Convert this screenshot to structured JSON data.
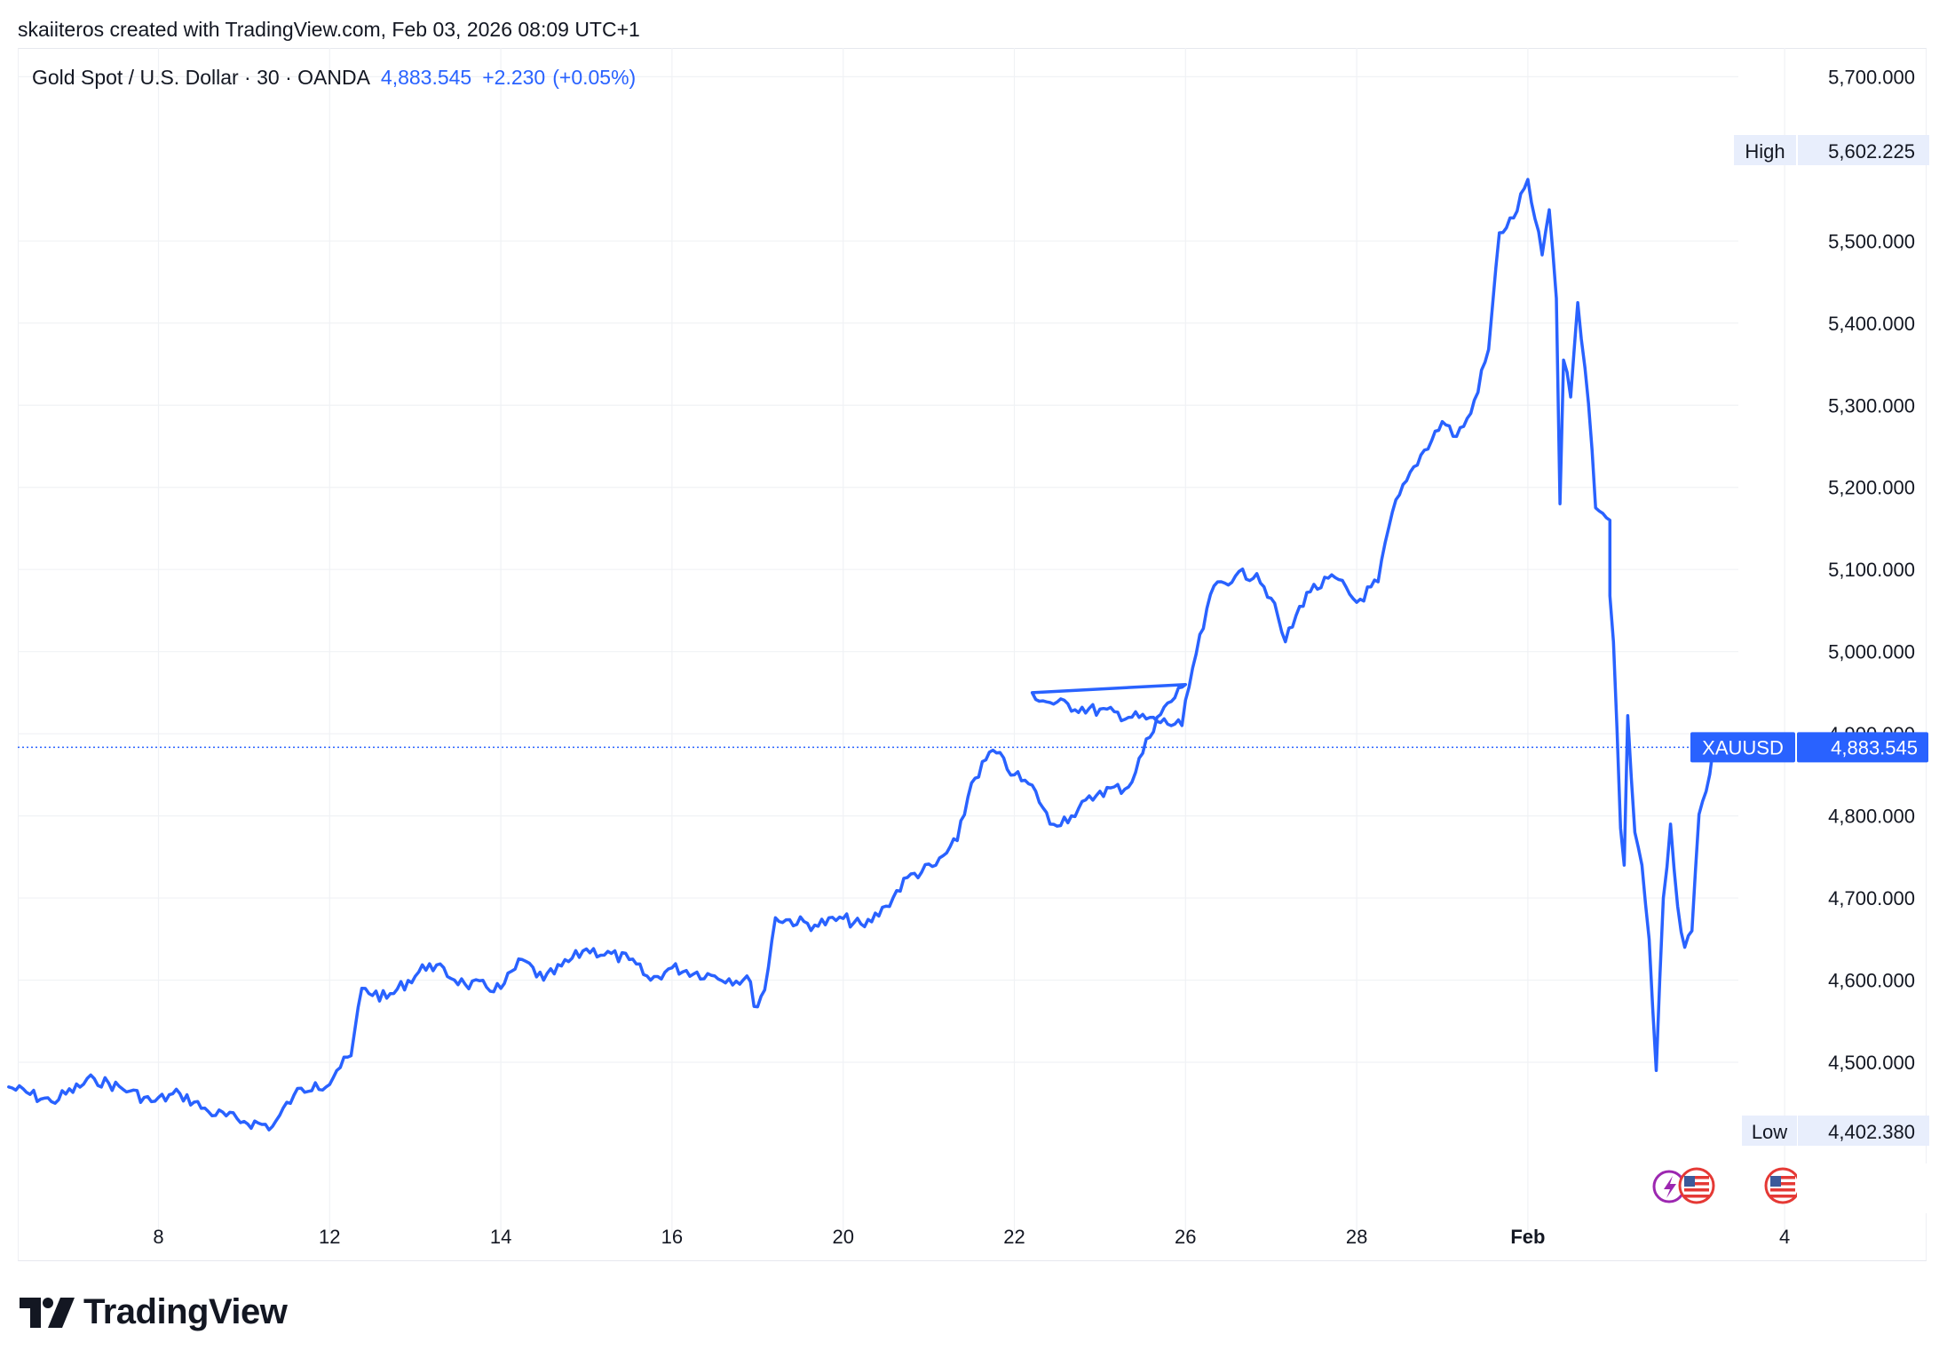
{
  "caption": "skaiiteros created with TradingView.com, Feb 03, 2026 08:09 UTC+1",
  "legend": {
    "symbol_text": "Gold Spot / U.S. Dollar · 30 · OANDA",
    "price": "4,883.545",
    "change": "+2.230",
    "change_pct": "(+0.05%)"
  },
  "brand": {
    "wordmark": "TradingView"
  },
  "colors": {
    "line": "#2962ff",
    "grid": "#f0f2f5",
    "text": "#131722",
    "tag_bg": "#e8eefc",
    "label_bg": "#2962ff"
  },
  "markers": [
    {
      "name": "lightning-event-icon",
      "color": "#9c27b0"
    },
    {
      "name": "us-flag-event-icon",
      "color": "#e53935"
    },
    {
      "name": "us-flag-event-icon",
      "color": "#e53935"
    }
  ],
  "chart_data": {
    "type": "line",
    "title": "Gold Spot / U.S. Dollar · 30 · OANDA",
    "xlabel": "",
    "ylabel": "",
    "ylim": [
      4327,
      5735
    ],
    "y_ticks": [
      4500,
      4600,
      4700,
      4800,
      4900,
      5000,
      5100,
      5200,
      5300,
      5400,
      5500,
      5700
    ],
    "y_tick_labels": [
      "4,500.000",
      "4,600.000",
      "4,700.000",
      "4,800.000",
      "4,900.000",
      "5,000.000",
      "5,100.000",
      "5,200.000",
      "5,300.000",
      "5,400.000",
      "5,500.000",
      "5,700.000"
    ],
    "x_ticks": [
      {
        "x": "2026-01-08",
        "label": "8",
        "bold": false
      },
      {
        "x": "2026-01-12",
        "label": "12",
        "bold": false
      },
      {
        "x": "2026-01-14",
        "label": "14",
        "bold": false
      },
      {
        "x": "2026-01-16",
        "label": "16",
        "bold": false
      },
      {
        "x": "2026-01-20",
        "label": "20",
        "bold": false
      },
      {
        "x": "2026-01-22",
        "label": "22",
        "bold": false
      },
      {
        "x": "2026-01-26",
        "label": "26",
        "bold": false
      },
      {
        "x": "2026-01-28",
        "label": "28",
        "bold": false
      },
      {
        "x": "2026-02-01",
        "label": "Feb",
        "bold": true
      },
      {
        "x": "2026-02-04",
        "label": "4",
        "bold": false
      }
    ],
    "high": {
      "tag": "High",
      "value": "5,602.225"
    },
    "low": {
      "tag": "Low",
      "value": "4,402.380"
    },
    "last": {
      "tag": "XAUUSD",
      "value": "4,883.545",
      "y": 4883.545
    },
    "series": [
      {
        "points": [
          [
            "2026-01-06 06:00",
            4470
          ],
          [
            "2026-01-06 18:00",
            4452
          ],
          [
            "2026-01-07 06:00",
            4480
          ],
          [
            "2026-01-07 16:00",
            4465
          ],
          [
            "2026-01-07 22:00",
            4452
          ],
          [
            "2026-01-08 06:00",
            4462
          ],
          [
            "2026-01-08 14:00",
            4440
          ],
          [
            "2026-01-09 00:00",
            4428
          ],
          [
            "2026-01-09 08:00",
            4422
          ],
          [
            "2026-01-09 14:00",
            4460
          ],
          [
            "2026-01-09 20:00",
            4475
          ],
          [
            "2026-01-11 23:00",
            4470
          ],
          [
            "2026-01-12 02:00",
            4490
          ],
          [
            "2026-01-12 06:00",
            4508
          ],
          [
            "2026-01-12 09:00",
            4590
          ],
          [
            "2026-01-12 16:00",
            4578
          ],
          [
            "2026-01-13 04:00",
            4620
          ],
          [
            "2026-01-13 14:00",
            4595
          ],
          [
            "2026-01-14 00:00",
            4590
          ],
          [
            "2026-01-14 06:00",
            4625
          ],
          [
            "2026-01-14 12:00",
            4600
          ],
          [
            "2026-01-15 00:00",
            4638
          ],
          [
            "2026-01-15 12:00",
            4625
          ],
          [
            "2026-01-15 18:00",
            4600
          ],
          [
            "2026-01-16 00:00",
            4615
          ],
          [
            "2026-01-16 12:00",
            4605
          ],
          [
            "2026-01-16 22:00",
            4598
          ],
          [
            "2026-01-18 23:00",
            4568
          ],
          [
            "2026-01-19 02:00",
            4588
          ],
          [
            "2026-01-19 05:00",
            4676
          ],
          [
            "2026-01-19 16:00",
            4667
          ],
          [
            "2026-01-20 00:00",
            4675
          ],
          [
            "2026-01-20 06:00",
            4665
          ],
          [
            "2026-01-20 12:00",
            4690
          ],
          [
            "2026-01-20 18:00",
            4725
          ],
          [
            "2026-01-21 02:00",
            4740
          ],
          [
            "2026-01-21 08:00",
            4770
          ],
          [
            "2026-01-21 12:00",
            4840
          ],
          [
            "2026-01-21 18:00",
            4880
          ],
          [
            "2026-01-22 00:00",
            4850
          ],
          [
            "2026-01-22 06:00",
            4830
          ],
          [
            "2026-01-22 10:00",
            4790
          ],
          [
            "2026-01-22 16:00",
            4800
          ],
          [
            "2026-01-23 00:00",
            4830
          ],
          [
            "2026-01-23 08:00",
            4835
          ],
          [
            "2026-01-23 16:00",
            4920
          ],
          [
            "2026-01-24 00:00",
            4960
          ],
          [
            "2026-01-24 05:00",
            4950
          ],
          [
            "2026-01-24 08:00",
            4940
          ],
          [
            "2026-01-25 23:00",
            4910
          ],
          [
            "2026-01-26 02:00",
            4980
          ],
          [
            "2026-01-26 08:00",
            5080
          ],
          [
            "2026-01-26 14:00",
            5092
          ],
          [
            "2026-01-26 20:00",
            5095
          ],
          [
            "2026-01-27 00:00",
            5065
          ],
          [
            "2026-01-27 04:00",
            5012
          ],
          [
            "2026-01-27 10:00",
            5072
          ],
          [
            "2026-01-27 18:00",
            5090
          ],
          [
            "2026-01-28 00:00",
            5060
          ],
          [
            "2026-01-28 06:00",
            5085
          ],
          [
            "2026-01-28 10:00",
            5170
          ],
          [
            "2026-01-28 16:00",
            5225
          ],
          [
            "2026-01-29 00:00",
            5280
          ],
          [
            "2026-01-29 04:00",
            5262
          ],
          [
            "2026-01-29 08:00",
            5290
          ],
          [
            "2026-01-29 13:00",
            5368
          ],
          [
            "2026-01-29 16:00",
            5510
          ],
          [
            "2026-01-29 20:00",
            5528
          ],
          [
            "2026-01-30 00:00",
            5575
          ],
          [
            "2026-01-30 02:00",
            5527
          ],
          [
            "2026-01-30 04:00",
            5483
          ],
          [
            "2026-01-30 06:00",
            5538
          ],
          [
            "2026-01-30 08:00",
            5430
          ],
          [
            "2026-01-30 09:00",
            5180
          ],
          [
            "2026-01-30 10:00",
            5355
          ],
          [
            "2026-01-30 12:00",
            5310
          ],
          [
            "2026-01-30 14:00",
            5425
          ],
          [
            "2026-01-30 17:00",
            5302
          ],
          [
            "2026-01-30 19:00",
            5175
          ],
          [
            "2026-01-30 23:00",
            5160
          ],
          [
            "2026-02-01 23:00",
            5068
          ],
          [
            "2026-02-02 00:00",
            5012
          ],
          [
            "2026-02-02 02:00",
            4785
          ],
          [
            "2026-02-02 03:00",
            4740
          ],
          [
            "2026-02-02 04:00",
            4922
          ],
          [
            "2026-02-02 06:00",
            4780
          ],
          [
            "2026-02-02 08:00",
            4740
          ],
          [
            "2026-02-02 10:00",
            4650
          ],
          [
            "2026-02-02 12:00",
            4490
          ],
          [
            "2026-02-02 14:00",
            4700
          ],
          [
            "2026-02-02 16:00",
            4790
          ],
          [
            "2026-02-02 18:00",
            4690
          ],
          [
            "2026-02-02 20:00",
            4640
          ],
          [
            "2026-02-02 22:00",
            4660
          ],
          [
            "2026-02-03 00:00",
            4802
          ],
          [
            "2026-02-03 02:00",
            4830
          ],
          [
            "2026-02-03 04:00",
            4883.545
          ]
        ]
      }
    ]
  }
}
